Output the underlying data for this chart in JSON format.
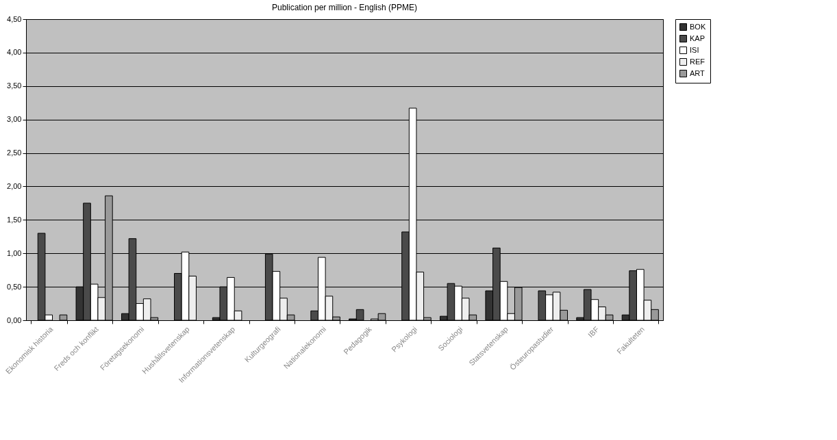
{
  "chart_data": {
    "type": "bar",
    "title": "Publication per million - English (PPME)",
    "categories": [
      "Ekonomisk historia",
      "Freds och konflikt",
      "Företagsekonomi",
      "Hushållsvetenskap",
      "Informationsvetenskap",
      "Kulturgeografi",
      "Nationalekonomi",
      "Pedagogik",
      "Psykologi",
      "Sociologi",
      "Statsvetenskap",
      "Östeuropastudier",
      "IBF",
      "Fakulteten"
    ],
    "series": [
      {
        "name": "BOK",
        "color": "#333333",
        "values": [
          null,
          0.5,
          0.1,
          null,
          0.04,
          null,
          null,
          0.02,
          null,
          0.06,
          0.44,
          null,
          0.04,
          0.08
        ]
      },
      {
        "name": "KAP",
        "color": "#4a4a4a",
        "values": [
          1.3,
          1.75,
          1.22,
          0.7,
          0.5,
          0.99,
          0.14,
          0.16,
          1.32,
          0.55,
          1.08,
          0.44,
          0.46,
          0.74
        ]
      },
      {
        "name": "ISI",
        "color": "#ffffff",
        "values": [
          0.08,
          0.54,
          0.25,
          1.02,
          0.64,
          0.73,
          0.94,
          null,
          3.17,
          0.51,
          0.58,
          0.38,
          0.31,
          0.76
        ]
      },
      {
        "name": "REF",
        "color": "#eeeeee",
        "values": [
          null,
          0.34,
          0.32,
          0.66,
          0.14,
          0.33,
          0.36,
          0.02,
          0.72,
          0.33,
          0.1,
          0.42,
          0.2,
          0.3
        ]
      },
      {
        "name": "ART",
        "color": "#999999",
        "values": [
          0.08,
          1.86,
          0.04,
          null,
          null,
          0.08,
          0.05,
          0.1,
          0.04,
          0.08,
          0.49,
          0.15,
          0.08,
          0.16
        ]
      }
    ],
    "ylim": [
      0,
      4.5
    ],
    "yticks": [
      {
        "value": 0,
        "label": "0,00"
      },
      {
        "value": 0.5,
        "label": "0,50"
      },
      {
        "value": 1,
        "label": "1,00"
      },
      {
        "value": 1.5,
        "label": "1,50"
      },
      {
        "value": 2,
        "label": "2,00"
      },
      {
        "value": 2.5,
        "label": "2,50"
      },
      {
        "value": 3,
        "label": "3,00"
      },
      {
        "value": 3.5,
        "label": "3,50"
      },
      {
        "value": 4,
        "label": "4,00"
      },
      {
        "value": 4.5,
        "label": "4,50"
      }
    ],
    "grid": "y",
    "legend": "right"
  }
}
